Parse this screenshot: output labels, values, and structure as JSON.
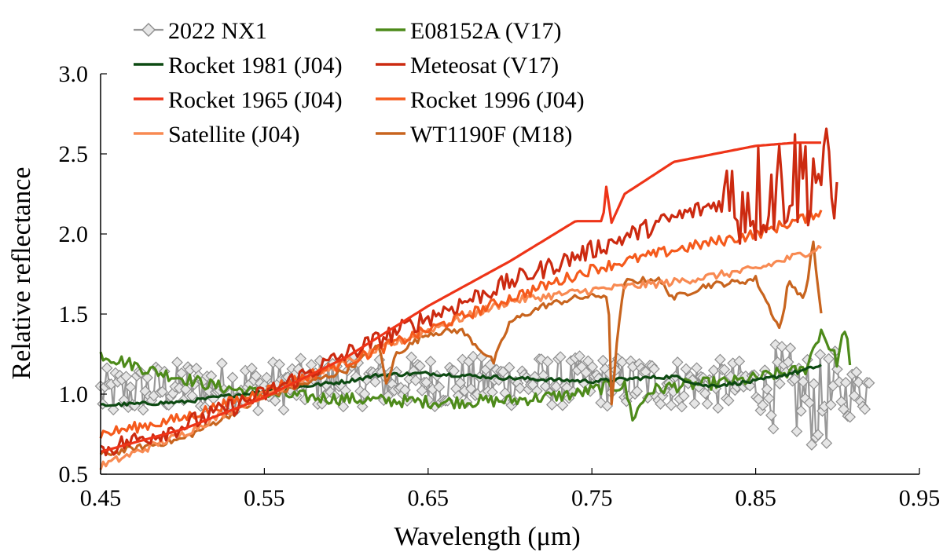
{
  "chart_data": {
    "type": "line",
    "xlabel": "Wavelength (μm)",
    "ylabel": "Relative reflectance",
    "xlim": [
      0.45,
      0.95
    ],
    "ylim": [
      0.5,
      3.0
    ],
    "xticks": [
      "0.45",
      "0.55",
      "0.65",
      "0.75",
      "0.85",
      "0.95"
    ],
    "yticks": [
      "0.5",
      "1.0",
      "1.5",
      "2.0",
      "2.5",
      "3.0"
    ],
    "grid": false,
    "legend": "top-left, two columns",
    "series": [
      {
        "name": "2022 NX1",
        "color": "#999999",
        "marker": "diamond",
        "style": "noisy",
        "x": [
          0.45,
          0.5,
          0.55,
          0.6,
          0.65,
          0.7,
          0.75,
          0.8,
          0.85,
          0.87,
          0.89,
          0.92
        ],
        "y": [
          1.0,
          1.05,
          1.05,
          1.08,
          1.08,
          1.08,
          1.08,
          1.07,
          1.05,
          1.0,
          0.95,
          1.05
        ],
        "noise": 0.16
      },
      {
        "name": "E08152A (V17)",
        "color": "#4d8a1a",
        "style": "line",
        "x": [
          0.45,
          0.465,
          0.48,
          0.5,
          0.52,
          0.55,
          0.58,
          0.62,
          0.66,
          0.7,
          0.72,
          0.74,
          0.76,
          0.77,
          0.775,
          0.785,
          0.8,
          0.84,
          0.86,
          0.88,
          0.89,
          0.9,
          0.905,
          0.908
        ],
        "y": [
          1.25,
          1.2,
          1.15,
          1.1,
          1.05,
          1.0,
          0.98,
          0.96,
          0.95,
          0.96,
          0.98,
          1.0,
          1.05,
          1.05,
          0.85,
          1.02,
          1.05,
          1.08,
          1.12,
          1.15,
          1.4,
          1.2,
          1.45,
          1.1
        ],
        "noise": 0.04
      },
      {
        "name": "Rocket 1981 (J04)",
        "color": "#0d4a12",
        "style": "line",
        "x": [
          0.45,
          0.5,
          0.55,
          0.6,
          0.62,
          0.65,
          0.7,
          0.75,
          0.78,
          0.8,
          0.82,
          0.85,
          0.88,
          0.89
        ],
        "y": [
          0.93,
          0.95,
          1.02,
          1.08,
          1.12,
          1.13,
          1.1,
          1.08,
          1.1,
          1.11,
          1.05,
          1.08,
          1.15,
          1.18
        ],
        "noise": 0.012
      },
      {
        "name": "Meteosat (V17)",
        "color": "#cc2a10",
        "style": "line",
        "x": [
          0.45,
          0.5,
          0.55,
          0.6,
          0.65,
          0.7,
          0.75,
          0.8,
          0.83,
          0.85,
          0.87,
          0.89,
          0.9
        ],
        "y": [
          0.65,
          0.8,
          1.0,
          1.25,
          1.48,
          1.7,
          1.9,
          2.1,
          2.2,
          2.25,
          2.35,
          2.4,
          2.15
        ],
        "noise": 0.06
      },
      {
        "name": "Rocket 1965 (J04)",
        "color": "#ee3418",
        "style": "line",
        "x": [
          0.45,
          0.5,
          0.55,
          0.6,
          0.65,
          0.7,
          0.74,
          0.757,
          0.758,
          0.762,
          0.77,
          0.8,
          0.85,
          0.875,
          0.89
        ],
        "y": [
          0.64,
          0.78,
          0.98,
          1.23,
          1.55,
          1.83,
          2.08,
          2.08,
          2.35,
          2.07,
          2.25,
          2.45,
          2.55,
          2.57,
          2.57
        ],
        "noise": 0.0
      },
      {
        "name": "Rocket 1996 (J04)",
        "color": "#f55a1c",
        "style": "line",
        "x": [
          0.45,
          0.5,
          0.55,
          0.6,
          0.65,
          0.7,
          0.75,
          0.8,
          0.85,
          0.88,
          0.89
        ],
        "y": [
          0.75,
          0.85,
          1.02,
          1.2,
          1.4,
          1.6,
          1.78,
          1.9,
          2.0,
          2.1,
          2.15
        ],
        "noise": 0.035
      },
      {
        "name": "Satellite (J04)",
        "color": "#f88a52",
        "style": "line",
        "x": [
          0.45,
          0.5,
          0.55,
          0.6,
          0.65,
          0.7,
          0.75,
          0.8,
          0.85,
          0.88,
          0.89
        ],
        "y": [
          0.55,
          0.75,
          1.0,
          1.2,
          1.4,
          1.58,
          1.65,
          1.7,
          1.78,
          1.88,
          1.92
        ],
        "noise": 0.025
      },
      {
        "name": "WT1190F (M18)",
        "color": "#c8641e",
        "style": "line",
        "x": [
          0.45,
          0.5,
          0.55,
          0.6,
          0.62,
          0.625,
          0.63,
          0.65,
          0.67,
          0.69,
          0.7,
          0.72,
          0.74,
          0.76,
          0.762,
          0.765,
          0.77,
          0.79,
          0.8,
          0.82,
          0.84,
          0.85,
          0.865,
          0.87,
          0.88,
          0.885,
          0.89
        ],
        "y": [
          0.62,
          0.72,
          0.98,
          1.15,
          1.3,
          1.05,
          1.25,
          1.38,
          1.4,
          1.2,
          1.45,
          1.55,
          1.6,
          1.62,
          0.92,
          1.3,
          1.7,
          1.72,
          1.6,
          1.68,
          1.7,
          1.72,
          1.4,
          1.7,
          1.6,
          1.95,
          1.5
        ],
        "noise": 0.02
      }
    ]
  }
}
